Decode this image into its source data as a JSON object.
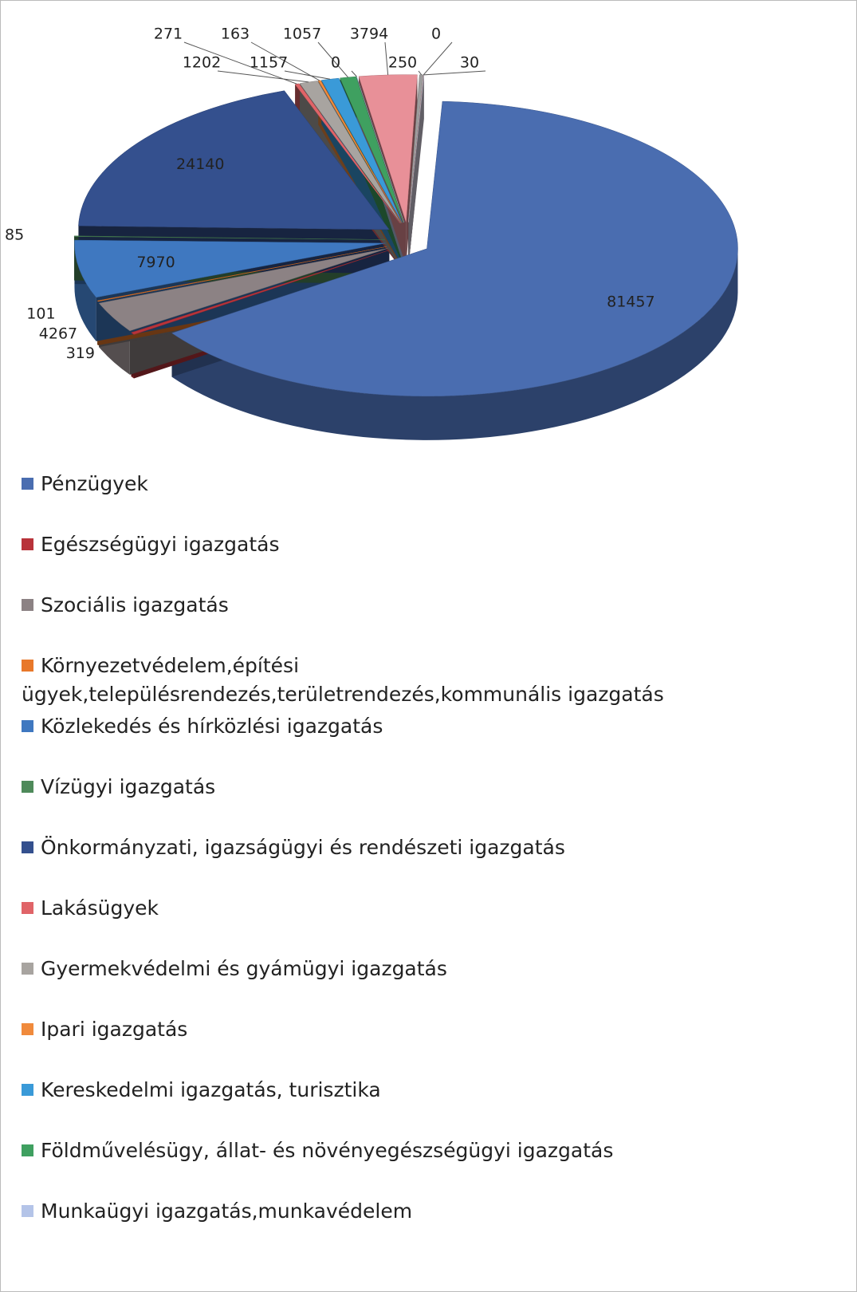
{
  "chart_data": {
    "type": "pie",
    "categories": [
      "Pénzügyek",
      "Egészségügyi igazgatás",
      "Szociális igazgatás",
      "Környezetvédelem,építési ügyek,településrendezés,területrendezés,kommunális igazgatás",
      "Közlekedés és hírközlési igazgatás",
      "Vízügyi igazgatás",
      "Önkormányzati, igazságügyi és rendészeti igazgatás",
      "Lakásügyek",
      "Gyermekvédelmi és gyámügyi igazgatás",
      "Ipari igazgatás",
      "Kereskedelmi igazgatás, turisztika",
      "Földművelésügy, állat- és növényegészségügyi igazgatás",
      "Munkaügyi igazgatás,munkavédelem",
      null,
      null,
      null,
      null
    ],
    "values": [
      81457,
      319,
      4267,
      101,
      7970,
      85,
      24140,
      271,
      1202,
      163,
      1157,
      1057,
      0,
      3794,
      250,
      0,
      30
    ],
    "colors": [
      "#4a6db0",
      "#b8333a",
      "#8c8284",
      "#e8782a",
      "#3f78c0",
      "#4e8a5a",
      "#34508e",
      "#e06468",
      "#a8a4a0",
      "#f08a3c",
      "#3a9ad8",
      "#3fa060",
      "#b4c4e8",
      "#e89098",
      "#9c9c9c",
      "#c0504d",
      "#d8d0e0"
    ]
  }
}
